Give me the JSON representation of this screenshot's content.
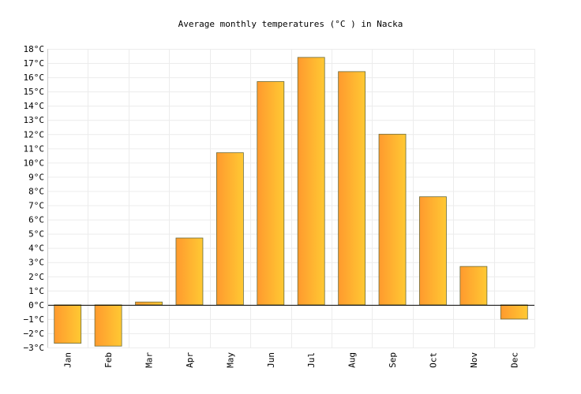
{
  "chart_data": {
    "type": "bar",
    "title": "Average monthly temperatures (°C ) in Nacka",
    "categories": [
      "Jan",
      "Feb",
      "Mar",
      "Apr",
      "May",
      "Jun",
      "Jul",
      "Aug",
      "Sep",
      "Oct",
      "Nov",
      "Dec"
    ],
    "values": [
      -2.7,
      -2.9,
      0.2,
      4.7,
      10.7,
      15.7,
      17.4,
      16.4,
      12.0,
      7.6,
      2.7,
      -1.0
    ],
    "ylim": [
      -3,
      18
    ],
    "yticks": [
      "−3°C",
      "−2°C",
      "−1°C",
      "0°C",
      "1°C",
      "2°C",
      "3°C",
      "4°C",
      "5°C",
      "6°C",
      "7°C",
      "8°C",
      "9°C",
      "10°C",
      "11°C",
      "12°C",
      "13°C",
      "14°C",
      "15°C",
      "16°C",
      "17°C",
      "18°C"
    ],
    "xlabel": "",
    "ylabel": "",
    "grid": true,
    "colors": {
      "bar_start": "#FF9A2E",
      "bar_end": "#FFC933",
      "bar_stroke": "#6B6B3A",
      "grid": "#ececec",
      "axis": "#000000"
    }
  }
}
